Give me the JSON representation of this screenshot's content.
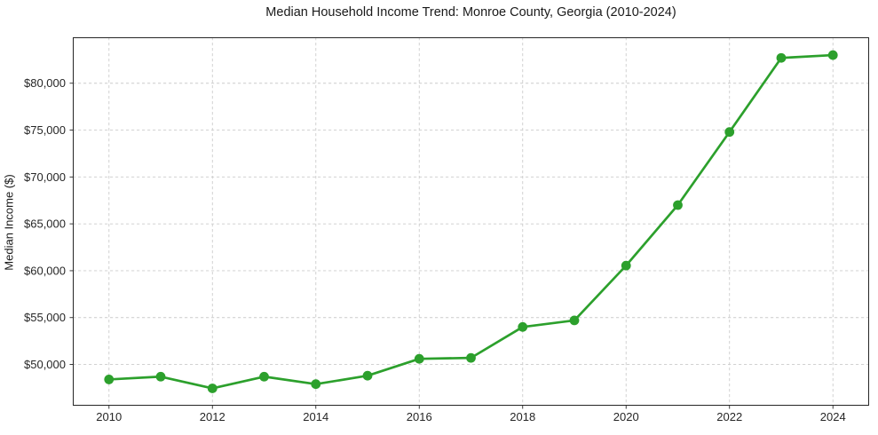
{
  "chart_data": {
    "type": "line",
    "title": "Median Household Income Trend: Monroe County, Georgia (2010-2024)",
    "xlabel": "",
    "ylabel": "Median Income ($)",
    "series": [
      {
        "name": "Median household income",
        "x": [
          2010,
          2011,
          2012,
          2013,
          2014,
          2015,
          2016,
          2017,
          2018,
          2019,
          2020,
          2021,
          2022,
          2023,
          2024
        ],
        "values": [
          48400,
          48700,
          47450,
          48700,
          47900,
          48800,
          50600,
          50700,
          54000,
          54700,
          60550,
          67000,
          74800,
          82700,
          83000
        ]
      }
    ],
    "xlim": [
      2009.3,
      2024.7
    ],
    "ylim": [
      45600,
      84900
    ],
    "xticks": [
      2010,
      2012,
      2014,
      2016,
      2018,
      2020,
      2022,
      2024
    ],
    "xtick_labels": [
      "2010",
      "2012",
      "2014",
      "2016",
      "2018",
      "2020",
      "2022",
      "2024"
    ],
    "yticks": [
      50000,
      55000,
      60000,
      65000,
      70000,
      75000,
      80000
    ],
    "ytick_labels": [
      "$50,000",
      "$55,000",
      "$60,000",
      "$65,000",
      "$70,000",
      "$75,000",
      "$80,000"
    ],
    "grid": true,
    "legend": "none",
    "colors": {
      "line": "#2ca02c",
      "marker": "#2ca02c",
      "grid": "#cccccc",
      "axis": "#262626",
      "background": "#ffffff"
    },
    "marker_style": "circle",
    "line_width": 2.7,
    "marker_radius": 5.4
  }
}
